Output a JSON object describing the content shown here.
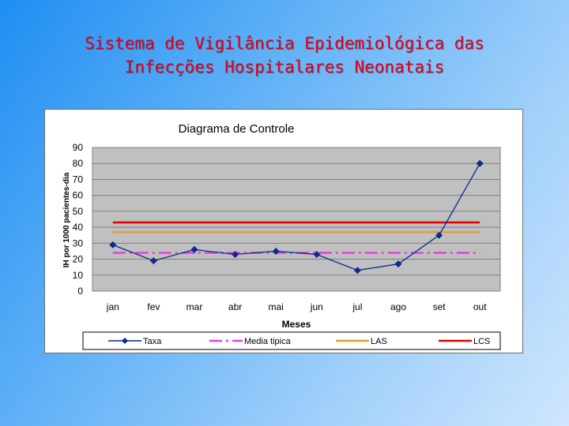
{
  "slide": {
    "title_line1": "Sistema de Vigilância Epidemiológica das",
    "title_line2": "Infecções Hospitalares Neonatais",
    "title_color": "#e4001b"
  },
  "chart_data": {
    "type": "line",
    "title": "Diagrama de Controle",
    "xlabel": "Meses",
    "ylabel": "IH por 1000 pacientes-dia",
    "categories": [
      "jan",
      "fev",
      "mar",
      "abr",
      "mai",
      "jun",
      "jul",
      "ago",
      "set",
      "out"
    ],
    "ylim": [
      0,
      90
    ],
    "yticks": [
      0,
      10,
      20,
      30,
      40,
      50,
      60,
      70,
      80,
      90
    ],
    "grid": true,
    "plot_background": "#c0c0c0",
    "legend_placement": "bottom",
    "series": [
      {
        "name": "Taxa",
        "values": [
          29,
          19,
          26,
          23,
          25,
          23,
          13,
          17,
          35,
          80
        ],
        "color": "#0b2a8a",
        "style": "solid",
        "marker": "diamond"
      },
      {
        "name": "Media tipica",
        "values": [
          24,
          24,
          24,
          24,
          24,
          24,
          24,
          24,
          24,
          24
        ],
        "color": "#e040e0",
        "style": "dashdot",
        "marker": "none"
      },
      {
        "name": "LAS",
        "values": [
          37,
          37,
          37,
          37,
          37,
          37,
          37,
          37,
          37,
          37
        ],
        "color": "#e0a030",
        "style": "solid",
        "marker": "none"
      },
      {
        "name": "LCS",
        "values": [
          43,
          43,
          43,
          43,
          43,
          43,
          43,
          43,
          43,
          43
        ],
        "color": "#e00000",
        "style": "solid",
        "marker": "none"
      }
    ]
  }
}
